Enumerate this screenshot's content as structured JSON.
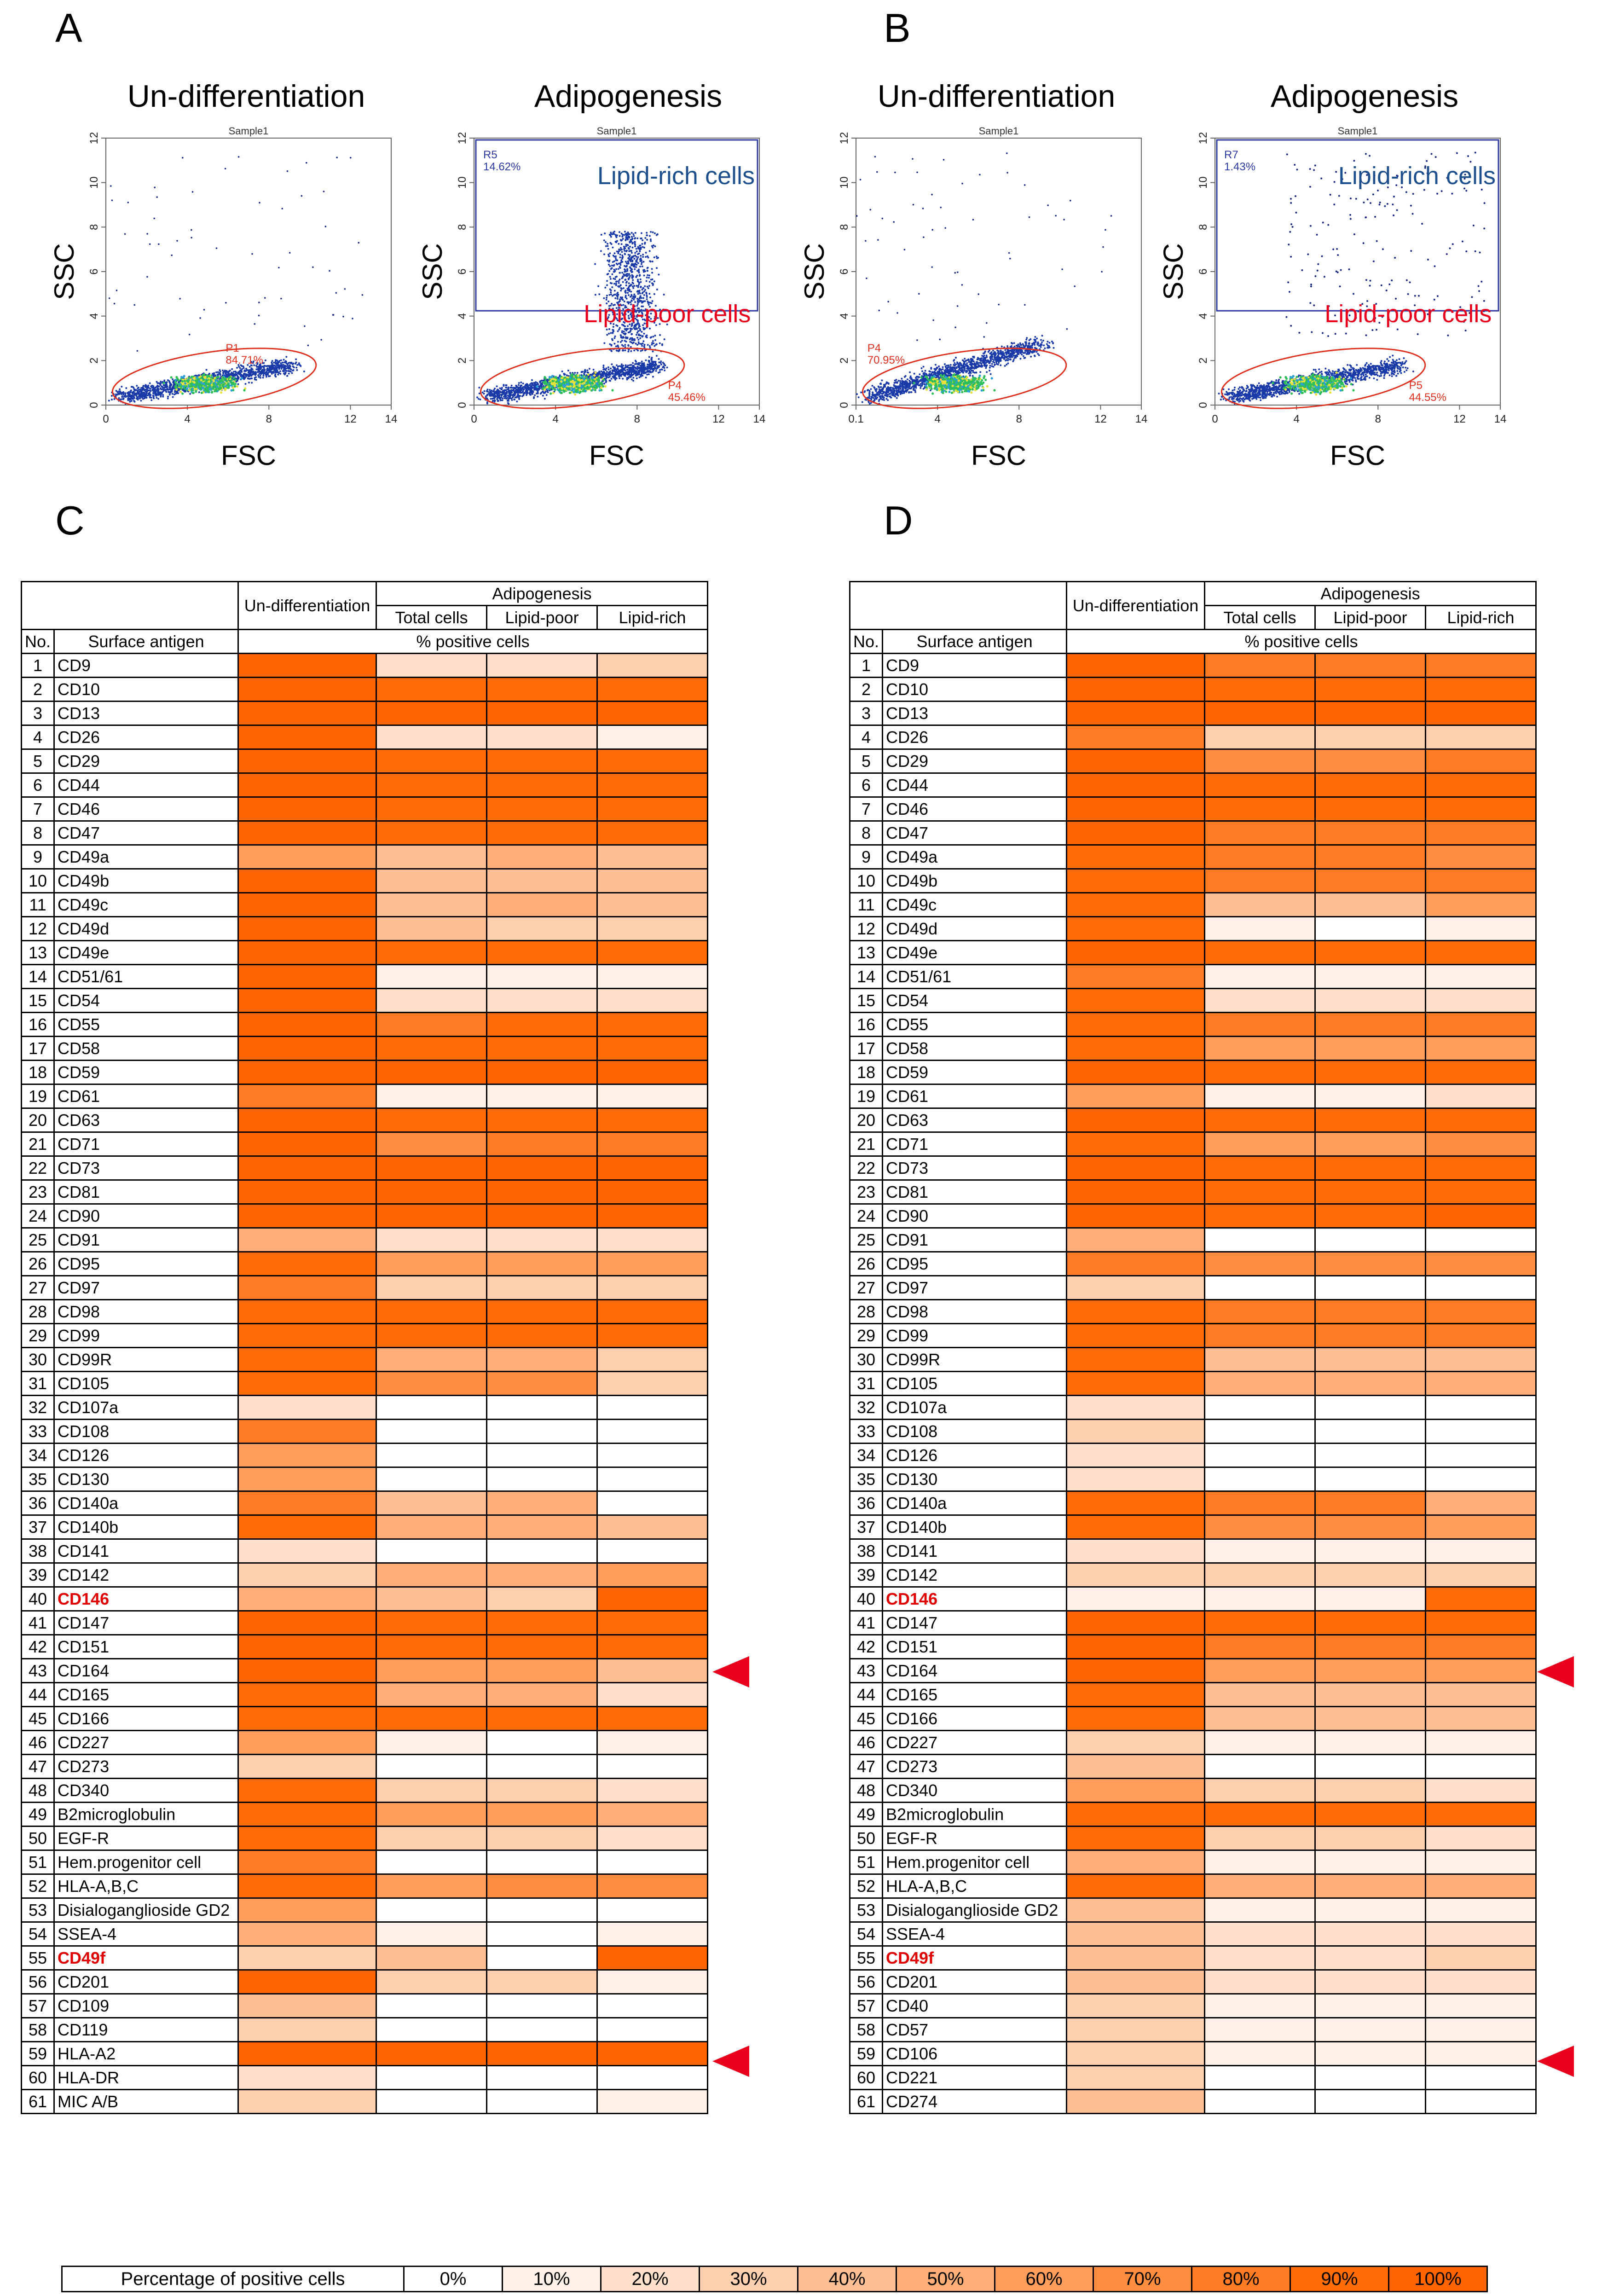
{
  "panels": {
    "A": "A",
    "B": "B",
    "C": "C",
    "D": "D"
  },
  "plots": [
    {
      "id": "A1",
      "title": "Un-differentiation",
      "sample": "Sample1",
      "xlabel": "FSC",
      "ylabel": "SSC",
      "xticks": [
        "0",
        "4",
        "8",
        "12",
        "14"
      ],
      "yticks": [
        "0",
        "2",
        "4",
        "6",
        "8",
        "10",
        "12"
      ],
      "gates": [
        {
          "name": "P1",
          "pct": "84.71%",
          "color": "#e0301e"
        }
      ]
    },
    {
      "id": "A2",
      "title": "Adipogenesis",
      "sample": "Sample1",
      "xlabel": "FSC",
      "ylabel": "SSC",
      "xticks": [
        "0",
        "4",
        "8",
        "12",
        "14"
      ],
      "yticks": [
        "0",
        "2",
        "4",
        "6",
        "8",
        "10",
        "12"
      ],
      "gates": [
        {
          "name": "R5",
          "pct": "14.62%",
          "color": "#2c3aa0"
        },
        {
          "name": "P4",
          "pct": "45.46%",
          "color": "#e0301e"
        }
      ],
      "labels": {
        "rich": "Lipid-rich cells",
        "poor": "Lipid-poor cells"
      }
    },
    {
      "id": "B1",
      "title": "Un-differentiation",
      "sample": "Sample1",
      "xlabel": "FSC",
      "ylabel": "SSC",
      "xticks": [
        "0.1",
        "4",
        "8",
        "12",
        "14"
      ],
      "yticks": [
        "0",
        "2",
        "4",
        "6",
        "8",
        "10",
        "12"
      ],
      "gates": [
        {
          "name": "P4",
          "pct": "70.95%",
          "color": "#e0301e"
        }
      ]
    },
    {
      "id": "B2",
      "title": "Adipogenesis",
      "sample": "Sample1",
      "xlabel": "FSC",
      "ylabel": "SSC",
      "xticks": [
        "0",
        "4",
        "8",
        "12",
        "14"
      ],
      "yticks": [
        "0",
        "2",
        "4",
        "6",
        "8",
        "10",
        "12"
      ],
      "gates": [
        {
          "name": "R7",
          "pct": "1.43%",
          "color": "#2c3aa0"
        },
        {
          "name": "P5",
          "pct": "44.55%",
          "color": "#e0301e"
        }
      ],
      "labels": {
        "rich": "Lipid-rich cells",
        "poor": "Lipid-poor cells"
      }
    }
  ],
  "table_header": {
    "undiff": "Un-differentiation",
    "adipo": "Adipogenesis",
    "total": "Total cells",
    "poor": "Lipid-poor",
    "rich": "Lipid-rich",
    "no": "No.",
    "antigen": "Surface antigen",
    "pct": "% positive cells"
  },
  "palette": [
    "#ffffff",
    "#fff1e8",
    "#ffe0cc",
    "#ffd0b0",
    "#ffbf94",
    "#ffae78",
    "#ff9e5c",
    "#ff8d40",
    "#ff7c24",
    "#ff6c08",
    "#ff6400"
  ],
  "table_C": [
    {
      "no": "1",
      "name": "CD9",
      "v": [
        10,
        2,
        2,
        3
      ]
    },
    {
      "no": "2",
      "name": "CD10",
      "v": [
        10,
        9,
        9,
        9
      ]
    },
    {
      "no": "3",
      "name": "CD13",
      "v": [
        10,
        10,
        10,
        10
      ]
    },
    {
      "no": "4",
      "name": "CD26",
      "v": [
        10,
        2,
        2,
        1
      ]
    },
    {
      "no": "5",
      "name": "CD29",
      "v": [
        10,
        9,
        9,
        9
      ]
    },
    {
      "no": "6",
      "name": "CD44",
      "v": [
        10,
        9,
        9,
        9
      ]
    },
    {
      "no": "7",
      "name": "CD46",
      "v": [
        10,
        9,
        9,
        9
      ]
    },
    {
      "no": "8",
      "name": "CD47",
      "v": [
        10,
        9,
        9,
        9
      ]
    },
    {
      "no": "9",
      "name": "CD49a",
      "v": [
        6,
        4,
        5,
        4
      ]
    },
    {
      "no": "10",
      "name": "CD49b",
      "v": [
        10,
        4,
        4,
        4
      ]
    },
    {
      "no": "11",
      "name": "CD49c",
      "v": [
        10,
        4,
        5,
        4
      ]
    },
    {
      "no": "12",
      "name": "CD49d",
      "v": [
        10,
        4,
        3,
        3
      ]
    },
    {
      "no": "13",
      "name": "CD49e",
      "v": [
        10,
        9,
        9,
        9
      ]
    },
    {
      "no": "14",
      "name": "CD51/61",
      "v": [
        10,
        1,
        1,
        1
      ]
    },
    {
      "no": "15",
      "name": "CD54",
      "v": [
        10,
        2,
        2,
        2
      ]
    },
    {
      "no": "16",
      "name": "CD55",
      "v": [
        10,
        8,
        9,
        9
      ]
    },
    {
      "no": "17",
      "name": "CD58",
      "v": [
        10,
        9,
        9,
        9
      ]
    },
    {
      "no": "18",
      "name": "CD59",
      "v": [
        10,
        10,
        10,
        10
      ]
    },
    {
      "no": "19",
      "name": "CD61",
      "v": [
        8,
        1,
        1,
        1
      ]
    },
    {
      "no": "20",
      "name": "CD63",
      "v": [
        10,
        9,
        9,
        9
      ]
    },
    {
      "no": "21",
      "name": "CD71",
      "v": [
        10,
        7,
        8,
        8
      ]
    },
    {
      "no": "22",
      "name": "CD73",
      "v": [
        10,
        10,
        10,
        10
      ]
    },
    {
      "no": "23",
      "name": "CD81",
      "v": [
        10,
        10,
        10,
        10
      ]
    },
    {
      "no": "24",
      "name": "CD90",
      "v": [
        10,
        10,
        10,
        10
      ]
    },
    {
      "no": "25",
      "name": "CD91",
      "v": [
        5,
        2,
        2,
        2
      ]
    },
    {
      "no": "26",
      "name": "CD95",
      "v": [
        9,
        6,
        6,
        6
      ]
    },
    {
      "no": "27",
      "name": "CD97",
      "v": [
        8,
        3,
        3,
        3
      ]
    },
    {
      "no": "28",
      "name": "CD98",
      "v": [
        9,
        9,
        9,
        9
      ]
    },
    {
      "no": "29",
      "name": "CD99",
      "v": [
        9,
        9,
        9,
        9
      ]
    },
    {
      "no": "30",
      "name": "CD99R",
      "v": [
        9,
        5,
        5,
        3
      ]
    },
    {
      "no": "31",
      "name": "CD105",
      "v": [
        9,
        7,
        7,
        3
      ]
    },
    {
      "no": "32",
      "name": "CD107a",
      "v": [
        2,
        0,
        0,
        0
      ]
    },
    {
      "no": "33",
      "name": "CD108",
      "v": [
        8,
        0,
        0,
        0
      ]
    },
    {
      "no": "34",
      "name": "CD126",
      "v": [
        6,
        0,
        0,
        0
      ]
    },
    {
      "no": "35",
      "name": "CD130",
      "v": [
        6,
        0,
        0,
        0
      ]
    },
    {
      "no": "36",
      "name": "CD140a",
      "v": [
        8,
        4,
        5,
        0
      ]
    },
    {
      "no": "37",
      "name": "CD140b",
      "v": [
        9,
        5,
        5,
        4
      ]
    },
    {
      "no": "38",
      "name": "CD141",
      "v": [
        2,
        0,
        0,
        0
      ]
    },
    {
      "no": "39",
      "name": "CD142",
      "v": [
        3,
        5,
        5,
        6
      ]
    },
    {
      "no": "40",
      "name": "CD146",
      "v": [
        5,
        4,
        3,
        10
      ],
      "hl": true
    },
    {
      "no": "41",
      "name": "CD147",
      "v": [
        10,
        9,
        9,
        9
      ]
    },
    {
      "no": "42",
      "name": "CD151",
      "v": [
        10,
        9,
        9,
        9
      ]
    },
    {
      "no": "43",
      "name": "CD164",
      "v": [
        10,
        6,
        6,
        4
      ]
    },
    {
      "no": "44",
      "name": "CD165",
      "v": [
        9,
        5,
        5,
        2
      ]
    },
    {
      "no": "45",
      "name": "CD166",
      "v": [
        9,
        9,
        9,
        9
      ]
    },
    {
      "no": "46",
      "name": "CD227",
      "v": [
        6,
        1,
        0,
        1
      ]
    },
    {
      "no": "47",
      "name": "CD273",
      "v": [
        3,
        0,
        0,
        0
      ]
    },
    {
      "no": "48",
      "name": "CD340",
      "v": [
        9,
        3,
        3,
        2
      ]
    },
    {
      "no": "49",
      "name": "B2microglobulin",
      "v": [
        9,
        6,
        6,
        5
      ]
    },
    {
      "no": "50",
      "name": "EGF-R",
      "v": [
        9,
        3,
        3,
        2
      ]
    },
    {
      "no": "51",
      "name": "Hem.progenitor cell",
      "v": [
        8,
        0,
        0,
        0
      ]
    },
    {
      "no": "52",
      "name": "HLA-A,B,C",
      "v": [
        9,
        6,
        7,
        7
      ]
    },
    {
      "no": "53",
      "name": "Disialoganglioside GD2",
      "v": [
        6,
        0,
        0,
        0
      ]
    },
    {
      "no": "54",
      "name": "SSEA-4",
      "v": [
        5,
        1,
        0,
        1
      ]
    },
    {
      "no": "55",
      "name": "CD49f",
      "v": [
        3,
        4,
        0,
        10
      ],
      "hl": true
    },
    {
      "no": "56",
      "name": "CD201",
      "v": [
        10,
        3,
        3,
        1
      ]
    },
    {
      "no": "57",
      "name": "CD109",
      "v": [
        4,
        0,
        0,
        0
      ]
    },
    {
      "no": "58",
      "name": "CD119",
      "v": [
        3,
        0,
        0,
        0
      ]
    },
    {
      "no": "59",
      "name": "HLA-A2",
      "v": [
        10,
        10,
        10,
        10
      ]
    },
    {
      "no": "60",
      "name": "HLA-DR",
      "v": [
        2,
        0,
        0,
        0
      ]
    },
    {
      "no": "61",
      "name": "MIC A/B",
      "v": [
        3,
        0,
        0,
        1
      ]
    }
  ],
  "table_D": [
    {
      "no": "1",
      "name": "CD9",
      "v": [
        10,
        8,
        8,
        8
      ]
    },
    {
      "no": "2",
      "name": "CD10",
      "v": [
        10,
        9,
        9,
        9
      ]
    },
    {
      "no": "3",
      "name": "CD13",
      "v": [
        10,
        10,
        10,
        10
      ]
    },
    {
      "no": "4",
      "name": "CD26",
      "v": [
        8,
        3,
        3,
        3
      ]
    },
    {
      "no": "5",
      "name": "CD29",
      "v": [
        10,
        7,
        7,
        8
      ]
    },
    {
      "no": "6",
      "name": "CD44",
      "v": [
        10,
        9,
        9,
        9
      ]
    },
    {
      "no": "7",
      "name": "CD46",
      "v": [
        10,
        9,
        9,
        9
      ]
    },
    {
      "no": "8",
      "name": "CD47",
      "v": [
        10,
        8,
        8,
        8
      ]
    },
    {
      "no": "9",
      "name": "CD49a",
      "v": [
        9,
        8,
        8,
        7
      ]
    },
    {
      "no": "10",
      "name": "CD49b",
      "v": [
        9,
        8,
        8,
        8
      ]
    },
    {
      "no": "11",
      "name": "CD49c",
      "v": [
        9,
        4,
        4,
        6
      ]
    },
    {
      "no": "12",
      "name": "CD49d",
      "v": [
        9,
        1,
        0,
        1
      ]
    },
    {
      "no": "13",
      "name": "CD49e",
      "v": [
        10,
        9,
        9,
        9
      ]
    },
    {
      "no": "14",
      "name": "CD51/61",
      "v": [
        8,
        1,
        1,
        1
      ]
    },
    {
      "no": "15",
      "name": "CD54",
      "v": [
        9,
        2,
        2,
        2
      ]
    },
    {
      "no": "16",
      "name": "CD55",
      "v": [
        9,
        8,
        8,
        8
      ]
    },
    {
      "no": "17",
      "name": "CD58",
      "v": [
        9,
        6,
        6,
        6
      ]
    },
    {
      "no": "18",
      "name": "CD59",
      "v": [
        10,
        9,
        9,
        9
      ]
    },
    {
      "no": "19",
      "name": "CD61",
      "v": [
        6,
        1,
        1,
        2
      ]
    },
    {
      "no": "20",
      "name": "CD63",
      "v": [
        10,
        9,
        9,
        9
      ]
    },
    {
      "no": "21",
      "name": "CD71",
      "v": [
        9,
        6,
        6,
        7
      ]
    },
    {
      "no": "22",
      "name": "CD73",
      "v": [
        10,
        9,
        9,
        9
      ]
    },
    {
      "no": "23",
      "name": "CD81",
      "v": [
        10,
        9,
        9,
        9
      ]
    },
    {
      "no": "24",
      "name": "CD90",
      "v": [
        10,
        9,
        9,
        10
      ]
    },
    {
      "no": "25",
      "name": "CD91",
      "v": [
        5,
        0,
        0,
        0
      ]
    },
    {
      "no": "26",
      "name": "CD95",
      "v": [
        8,
        7,
        7,
        7
      ]
    },
    {
      "no": "27",
      "name": "CD97",
      "v": [
        3,
        0,
        0,
        0
      ]
    },
    {
      "no": "28",
      "name": "CD98",
      "v": [
        9,
        8,
        8,
        8
      ]
    },
    {
      "no": "29",
      "name": "CD99",
      "v": [
        9,
        8,
        8,
        8
      ]
    },
    {
      "no": "30",
      "name": "CD99R",
      "v": [
        9,
        4,
        4,
        4
      ]
    },
    {
      "no": "31",
      "name": "CD105",
      "v": [
        9,
        5,
        5,
        5
      ]
    },
    {
      "no": "32",
      "name": "CD107a",
      "v": [
        2,
        0,
        0,
        0
      ]
    },
    {
      "no": "33",
      "name": "CD108",
      "v": [
        3,
        0,
        0,
        0
      ]
    },
    {
      "no": "34",
      "name": "CD126",
      "v": [
        2,
        0,
        0,
        0
      ]
    },
    {
      "no": "35",
      "name": "CD130",
      "v": [
        2,
        0,
        0,
        0
      ]
    },
    {
      "no": "36",
      "name": "CD140a",
      "v": [
        9,
        8,
        8,
        5
      ]
    },
    {
      "no": "37",
      "name": "CD140b",
      "v": [
        9,
        7,
        7,
        6
      ]
    },
    {
      "no": "38",
      "name": "CD141",
      "v": [
        2,
        1,
        1,
        1
      ]
    },
    {
      "no": "39",
      "name": "CD142",
      "v": [
        3,
        3,
        3,
        3
      ]
    },
    {
      "no": "40",
      "name": "CD146",
      "v": [
        1,
        1,
        1,
        9
      ],
      "hl": true
    },
    {
      "no": "41",
      "name": "CD147",
      "v": [
        10,
        9,
        9,
        9
      ]
    },
    {
      "no": "42",
      "name": "CD151",
      "v": [
        10,
        8,
        8,
        8
      ]
    },
    {
      "no": "43",
      "name": "CD164",
      "v": [
        10,
        6,
        6,
        6
      ]
    },
    {
      "no": "44",
      "name": "CD165",
      "v": [
        9,
        4,
        4,
        4
      ]
    },
    {
      "no": "45",
      "name": "CD166",
      "v": [
        9,
        4,
        4,
        4
      ]
    },
    {
      "no": "46",
      "name": "CD227",
      "v": [
        3,
        1,
        1,
        1
      ]
    },
    {
      "no": "47",
      "name": "CD273",
      "v": [
        4,
        0,
        0,
        0
      ]
    },
    {
      "no": "48",
      "name": "CD340",
      "v": [
        6,
        3,
        3,
        2
      ]
    },
    {
      "no": "49",
      "name": "B2microglobulin",
      "v": [
        9,
        9,
        9,
        9
      ]
    },
    {
      "no": "50",
      "name": "EGF-R",
      "v": [
        9,
        3,
        3,
        2
      ]
    },
    {
      "no": "51",
      "name": "Hem.progenitor cell",
      "v": [
        5,
        1,
        1,
        1
      ]
    },
    {
      "no": "52",
      "name": "HLA-A,B,C",
      "v": [
        9,
        5,
        5,
        5
      ]
    },
    {
      "no": "53",
      "name": "Disialoganglioside GD2",
      "v": [
        4,
        1,
        1,
        1
      ]
    },
    {
      "no": "54",
      "name": "SSEA-4",
      "v": [
        4,
        2,
        2,
        2
      ]
    },
    {
      "no": "55",
      "name": "CD49f",
      "v": [
        4,
        2,
        2,
        3
      ],
      "hl": true
    },
    {
      "no": "56",
      "name": "CD201",
      "v": [
        4,
        2,
        2,
        2
      ]
    },
    {
      "no": "57",
      "name": "CD40",
      "v": [
        3,
        1,
        1,
        1
      ]
    },
    {
      "no": "58",
      "name": "CD57",
      "v": [
        3,
        1,
        1,
        1
      ]
    },
    {
      "no": "59",
      "name": "CD106",
      "v": [
        3,
        1,
        1,
        1
      ]
    },
    {
      "no": "60",
      "name": "CD221",
      "v": [
        3,
        0,
        0,
        0
      ]
    },
    {
      "no": "61",
      "name": "CD274",
      "v": [
        4,
        0,
        0,
        0
      ]
    }
  ],
  "legend": {
    "title": "Percentage of positive cells",
    "items": [
      "0%",
      "10%",
      "20%",
      "30%",
      "40%",
      "50%",
      "60%",
      "70%",
      "80%",
      "90%",
      "100%"
    ]
  }
}
